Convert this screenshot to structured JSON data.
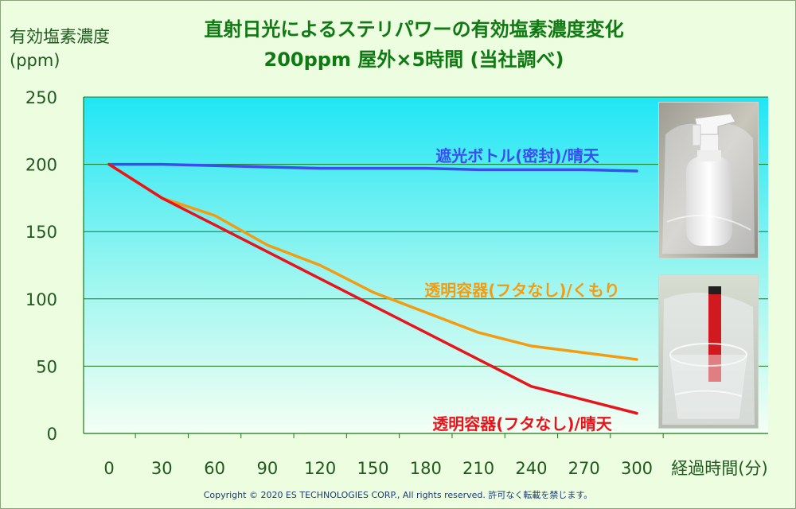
{
  "chart_data": {
    "type": "line",
    "title": "直射日光によるステリパワーの有効塩素濃度変化",
    "subtitle": "200ppm 屋外×5時間 (当社調べ)",
    "ylabel": [
      "有効塩素濃度",
      "(ppm)"
    ],
    "xlabel": "経過時間(分)",
    "x_ticks": [
      0,
      30,
      60,
      90,
      120,
      150,
      180,
      210,
      240,
      270,
      300
    ],
    "y_ticks": [
      0,
      50,
      100,
      150,
      200,
      250
    ],
    "xlim": [
      0,
      300
    ],
    "ylim": [
      0,
      250
    ],
    "grid": "horizontal",
    "legend": "inline labels",
    "series": [
      {
        "name": "遮光ボトル(密封)/晴天",
        "color": "#3a4ef0",
        "x": [
          0,
          30,
          60,
          90,
          120,
          150,
          180,
          210,
          240,
          270,
          300
        ],
        "values": [
          200,
          200,
          199,
          198,
          197,
          197,
          197,
          196,
          196,
          196,
          195
        ]
      },
      {
        "name": "透明容器(フタなし)/くもり",
        "color": "#f39c12",
        "x": [
          0,
          30,
          60,
          90,
          120,
          150,
          180,
          210,
          240,
          270,
          300
        ],
        "values": [
          200,
          175,
          162,
          140,
          125,
          105,
          90,
          75,
          65,
          60,
          55
        ]
      },
      {
        "name": "透明容器(フタなし)/晴天",
        "color": "#e8141c",
        "x": [
          0,
          30,
          60,
          90,
          120,
          150,
          180,
          210,
          240,
          270,
          300
        ],
        "values": [
          200,
          175,
          155,
          135,
          115,
          95,
          75,
          55,
          35,
          25,
          15
        ]
      }
    ]
  },
  "footer": {
    "copyright": "Copyright © 2020 ES TECHNOLOGIES CORP., All rights reserved.  許可なく転載を禁じます。"
  },
  "colors": {
    "title": "#0f7a12",
    "plot_top": "#1fe6f5",
    "plot_bottom": "#f2fff2",
    "grid": "#1a7a1a"
  }
}
